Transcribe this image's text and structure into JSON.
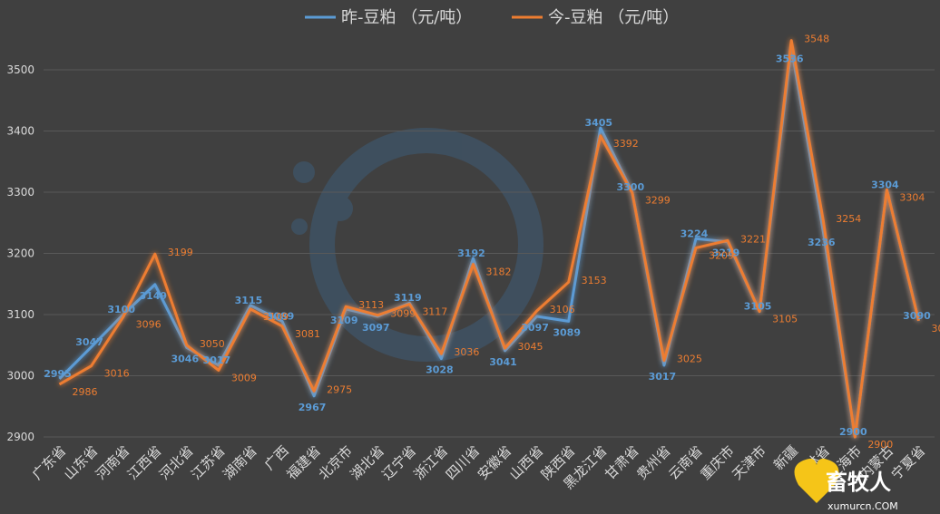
{
  "chart_data": {
    "type": "line",
    "title": "",
    "ylim": [
      2900,
      3500
    ],
    "yticks": [
      2900,
      3000,
      3100,
      3200,
      3300,
      3400,
      3500
    ],
    "grid": true,
    "legend_position": "top",
    "categories": [
      "广东省",
      "山东省",
      "河南省",
      "江西省",
      "河北省",
      "江苏省",
      "湖南省",
      "广西",
      "福建省",
      "北京市",
      "湖北省",
      "辽宁省",
      "浙江省",
      "四川省",
      "安徽省",
      "山西省",
      "陕西省",
      "黑龙江省",
      "甘肃省",
      "贵州省",
      "云南省",
      "重庆市",
      "天津市",
      "新疆",
      "吉林省",
      "上海市",
      "内蒙古",
      "宁夏省"
    ],
    "series": [
      {
        "name": "昨-豆粕 （元/吨）",
        "color": "#5b9bd5",
        "values": [
          2995,
          3047,
          3100,
          3149,
          3046,
          3017,
          3115,
          3089,
          2967,
          3109,
          3097,
          3119,
          3028,
          3192,
          3041,
          3097,
          3089,
          3405,
          3300,
          3017,
          3224,
          3219,
          3105,
          3536,
          3236,
          2900,
          3304,
          3090
        ]
      },
      {
        "name": "今-豆粕 （元/吨）",
        "color": "#ed7d31",
        "values": [
          2986,
          3016,
          3096,
          3199,
          3050,
          3009,
          3109,
          3081,
          2975,
          3113,
          3099,
          3117,
          3036,
          3182,
          3045,
          3106,
          3153,
          3392,
          3299,
          3025,
          3209,
          3221,
          3105,
          3548,
          3254,
          2900,
          3304,
          3090
        ]
      }
    ]
  },
  "watermark": {
    "text": "畜牧人",
    "subtext": "xumurcn.COM"
  }
}
